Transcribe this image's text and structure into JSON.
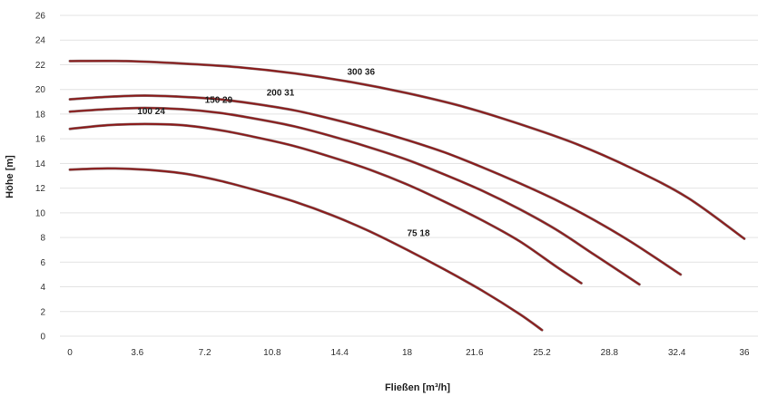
{
  "chart_data": {
    "type": "line",
    "title": "",
    "xlabel": "Fließen [m³/h]",
    "ylabel": "Höhe [m]",
    "xlim": [
      0,
      36
    ],
    "ylim": [
      0,
      26
    ],
    "x_ticks": [
      "0",
      "3.6",
      "7.2",
      "10.8",
      "14.4",
      "18",
      "21.6",
      "25.2",
      "28.8",
      "32.4",
      "36"
    ],
    "y_ticks": [
      "0",
      "2",
      "4",
      "6",
      "8",
      "10",
      "12",
      "14",
      "16",
      "18",
      "20",
      "22",
      "24",
      "26"
    ],
    "grid": true,
    "legend": "none",
    "line_color": "#8b1a1a",
    "series": [
      {
        "name": "75 18",
        "x": [
          0,
          2,
          4,
          6,
          8,
          10,
          12,
          14,
          16,
          18,
          20,
          22,
          24,
          25.2
        ],
        "y": [
          13.5,
          13.6,
          13.5,
          13.2,
          12.6,
          11.8,
          10.9,
          9.8,
          8.5,
          7.0,
          5.4,
          3.7,
          1.8,
          0.5
        ]
      },
      {
        "name": "100 24",
        "x": [
          0,
          2,
          4,
          6,
          8,
          10,
          12,
          14,
          16,
          18,
          20,
          22,
          24,
          26,
          27.3
        ],
        "y": [
          16.8,
          17.1,
          17.2,
          17.1,
          16.7,
          16.1,
          15.4,
          14.5,
          13.5,
          12.3,
          10.9,
          9.4,
          7.7,
          5.6,
          4.3
        ]
      },
      {
        "name": "150 29",
        "x": [
          0,
          2,
          4,
          6,
          8,
          10,
          12,
          14,
          16,
          18,
          20,
          22,
          24,
          26,
          28,
          30.4
        ],
        "y": [
          18.2,
          18.4,
          18.5,
          18.4,
          18.1,
          17.6,
          17.0,
          16.2,
          15.3,
          14.3,
          13.1,
          11.8,
          10.3,
          8.6,
          6.6,
          4.2
        ]
      },
      {
        "name": "200 31",
        "x": [
          0,
          2,
          4,
          6,
          8,
          10,
          12,
          14,
          16,
          18,
          20,
          22,
          24,
          26,
          28,
          30,
          32.6
        ],
        "y": [
          19.2,
          19.4,
          19.5,
          19.4,
          19.2,
          18.8,
          18.3,
          17.6,
          16.8,
          15.9,
          14.9,
          13.7,
          12.4,
          11.0,
          9.4,
          7.6,
          5.0
        ]
      },
      {
        "name": "300 36",
        "x": [
          0,
          3,
          6,
          9,
          12,
          15,
          18,
          21,
          24,
          27,
          30,
          33,
          36
        ],
        "y": [
          22.3,
          22.3,
          22.1,
          21.8,
          21.3,
          20.6,
          19.7,
          18.6,
          17.2,
          15.6,
          13.6,
          11.2,
          7.9
        ]
      }
    ],
    "annotations": [
      {
        "text": "300 36",
        "x": 14.8,
        "y": 21.2
      },
      {
        "text": "200 31",
        "x": 10.5,
        "y": 19.5
      },
      {
        "text": "150 29",
        "x": 7.2,
        "y": 18.9
      },
      {
        "text": "100 24",
        "x": 3.6,
        "y": 18.0
      },
      {
        "text": "75 18",
        "x": 18.0,
        "y": 8.1
      }
    ]
  }
}
